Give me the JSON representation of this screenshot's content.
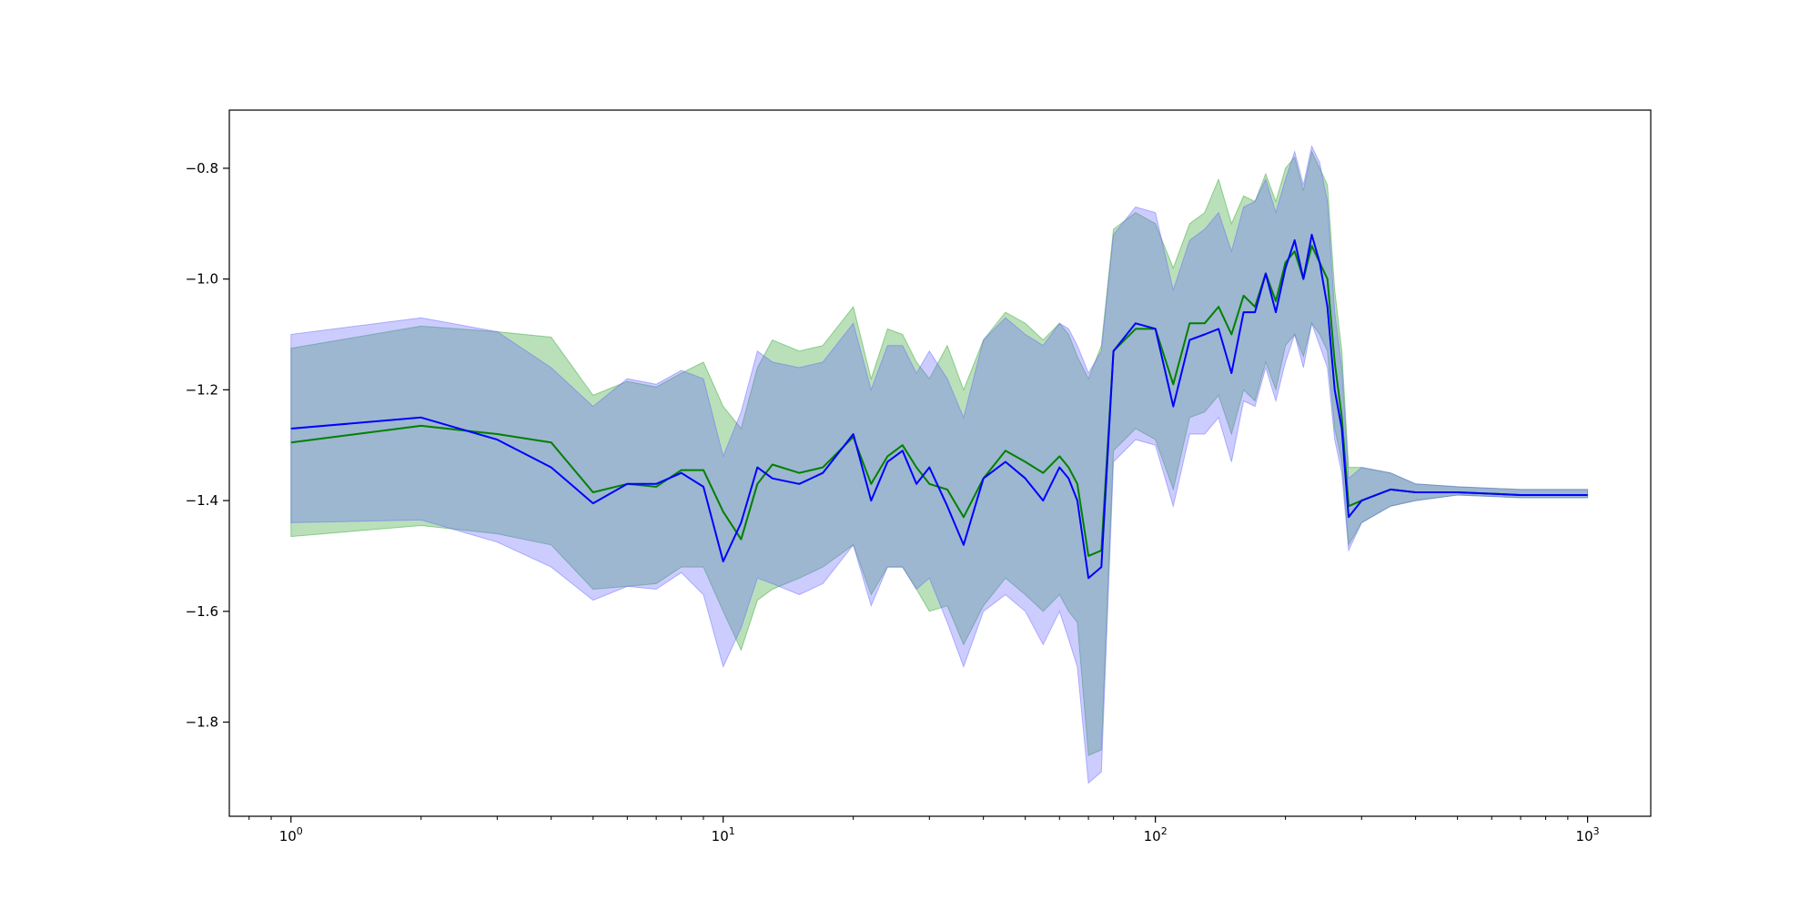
{
  "chart_data": {
    "type": "line",
    "title": "",
    "xlabel": "",
    "ylabel": "",
    "x_scale": "log",
    "xlim": [
      0.72,
      1400
    ],
    "ylim": [
      -1.97,
      -0.695
    ],
    "grid": false,
    "legend": "none",
    "x_ticks": [
      {
        "value": 1,
        "base": "10",
        "exp": "0"
      },
      {
        "value": 10,
        "base": "10",
        "exp": "1"
      },
      {
        "value": 100,
        "base": "10",
        "exp": "2"
      },
      {
        "value": 1000,
        "base": "10",
        "exp": "3"
      }
    ],
    "y_ticks": [
      {
        "value": -0.8,
        "label": "−0.8"
      },
      {
        "value": -1.0,
        "label": "−1.0"
      },
      {
        "value": -1.2,
        "label": "−1.2"
      },
      {
        "value": -1.4,
        "label": "−1.4"
      },
      {
        "value": -1.6,
        "label": "−1.6"
      },
      {
        "value": -1.8,
        "label": "−1.8"
      }
    ],
    "series": [
      {
        "color": "#008000",
        "band_color": "#2ca02c",
        "x": [
          1,
          2,
          3,
          4,
          5,
          6,
          7,
          8,
          9,
          10,
          11,
          12,
          13,
          15,
          17,
          20,
          22,
          24,
          26,
          28,
          30,
          33,
          36,
          40,
          45,
          50,
          55,
          60,
          63,
          66,
          70,
          75,
          80,
          90,
          100,
          110,
          120,
          130,
          140,
          150,
          160,
          170,
          180,
          190,
          200,
          210,
          220,
          230,
          240,
          250,
          260,
          270,
          280,
          300,
          350,
          400,
          500,
          700,
          1000
        ],
        "y": [
          -1.295,
          -1.265,
          -1.28,
          -1.295,
          -1.385,
          -1.37,
          -1.375,
          -1.345,
          -1.345,
          -1.42,
          -1.47,
          -1.37,
          -1.335,
          -1.35,
          -1.34,
          -1.285,
          -1.37,
          -1.32,
          -1.3,
          -1.34,
          -1.37,
          -1.38,
          -1.43,
          -1.36,
          -1.31,
          -1.33,
          -1.35,
          -1.32,
          -1.34,
          -1.37,
          -1.5,
          -1.49,
          -1.13,
          -1.09,
          -1.09,
          -1.19,
          -1.08,
          -1.08,
          -1.05,
          -1.1,
          -1.03,
          -1.05,
          -0.99,
          -1.04,
          -0.97,
          -0.95,
          -1.0,
          -0.94,
          -0.97,
          -1.0,
          -1.15,
          -1.25,
          -1.41,
          -1.4,
          -1.38,
          -1.385,
          -1.385,
          -1.39,
          -1.39
        ],
        "lower": [
          -1.465,
          -1.445,
          -1.46,
          -1.48,
          -1.56,
          -1.555,
          -1.55,
          -1.52,
          -1.52,
          -1.6,
          -1.67,
          -1.58,
          -1.56,
          -1.54,
          -1.52,
          -1.48,
          -1.57,
          -1.52,
          -1.52,
          -1.56,
          -1.6,
          -1.59,
          -1.66,
          -1.59,
          -1.54,
          -1.57,
          -1.6,
          -1.57,
          -1.6,
          -1.62,
          -1.86,
          -1.85,
          -1.31,
          -1.27,
          -1.29,
          -1.38,
          -1.25,
          -1.24,
          -1.21,
          -1.28,
          -1.2,
          -1.22,
          -1.15,
          -1.2,
          -1.12,
          -1.1,
          -1.14,
          -1.08,
          -1.1,
          -1.13,
          -1.27,
          -1.33,
          -1.48,
          -1.44,
          -1.41,
          -1.4,
          -1.39,
          -1.395,
          -1.395
        ],
        "upper": [
          -1.125,
          -1.085,
          -1.095,
          -1.105,
          -1.21,
          -1.185,
          -1.195,
          -1.17,
          -1.15,
          -1.23,
          -1.27,
          -1.16,
          -1.11,
          -1.13,
          -1.12,
          -1.05,
          -1.18,
          -1.09,
          -1.1,
          -1.15,
          -1.18,
          -1.12,
          -1.2,
          -1.11,
          -1.06,
          -1.08,
          -1.11,
          -1.08,
          -1.1,
          -1.14,
          -1.18,
          -1.12,
          -0.91,
          -0.88,
          -0.9,
          -0.98,
          -0.9,
          -0.88,
          -0.82,
          -0.9,
          -0.85,
          -0.86,
          -0.81,
          -0.86,
          -0.8,
          -0.78,
          -0.84,
          -0.77,
          -0.8,
          -0.83,
          -1.02,
          -1.13,
          -1.34,
          -1.34,
          -1.35,
          -1.37,
          -1.375,
          -1.38,
          -1.38
        ]
      },
      {
        "color": "#0000ff",
        "band_color": "#6464ff",
        "x": [
          1,
          2,
          3,
          4,
          5,
          6,
          7,
          8,
          9,
          10,
          11,
          12,
          13,
          15,
          17,
          20,
          22,
          24,
          26,
          28,
          30,
          33,
          36,
          40,
          45,
          50,
          55,
          60,
          63,
          66,
          70,
          75,
          80,
          90,
          100,
          110,
          120,
          130,
          140,
          150,
          160,
          170,
          180,
          190,
          200,
          210,
          220,
          230,
          240,
          250,
          260,
          270,
          280,
          300,
          350,
          400,
          500,
          700,
          1000
        ],
        "y": [
          -1.27,
          -1.25,
          -1.29,
          -1.34,
          -1.405,
          -1.37,
          -1.37,
          -1.35,
          -1.375,
          -1.51,
          -1.44,
          -1.34,
          -1.36,
          -1.37,
          -1.35,
          -1.28,
          -1.4,
          -1.33,
          -1.31,
          -1.37,
          -1.34,
          -1.41,
          -1.48,
          -1.36,
          -1.33,
          -1.36,
          -1.4,
          -1.34,
          -1.36,
          -1.4,
          -1.54,
          -1.52,
          -1.13,
          -1.08,
          -1.09,
          -1.23,
          -1.11,
          -1.1,
          -1.09,
          -1.17,
          -1.06,
          -1.06,
          -0.99,
          -1.06,
          -0.98,
          -0.93,
          -1.0,
          -0.92,
          -0.97,
          -1.05,
          -1.2,
          -1.27,
          -1.43,
          -1.4,
          -1.38,
          -1.385,
          -1.385,
          -1.39,
          -1.39
        ],
        "lower": [
          -1.44,
          -1.435,
          -1.475,
          -1.52,
          -1.58,
          -1.555,
          -1.56,
          -1.53,
          -1.57,
          -1.7,
          -1.63,
          -1.54,
          -1.55,
          -1.57,
          -1.55,
          -1.48,
          -1.59,
          -1.52,
          -1.52,
          -1.56,
          -1.54,
          -1.62,
          -1.7,
          -1.6,
          -1.57,
          -1.6,
          -1.66,
          -1.6,
          -1.65,
          -1.7,
          -1.91,
          -1.89,
          -1.33,
          -1.29,
          -1.3,
          -1.41,
          -1.28,
          -1.28,
          -1.25,
          -1.33,
          -1.22,
          -1.23,
          -1.16,
          -1.22,
          -1.15,
          -1.1,
          -1.16,
          -1.08,
          -1.12,
          -1.16,
          -1.29,
          -1.35,
          -1.49,
          -1.44,
          -1.41,
          -1.4,
          -1.39,
          -1.395,
          -1.395
        ],
        "upper": [
          -1.1,
          -1.07,
          -1.095,
          -1.16,
          -1.23,
          -1.18,
          -1.19,
          -1.165,
          -1.18,
          -1.32,
          -1.24,
          -1.13,
          -1.15,
          -1.16,
          -1.15,
          -1.08,
          -1.2,
          -1.12,
          -1.12,
          -1.17,
          -1.13,
          -1.18,
          -1.25,
          -1.11,
          -1.07,
          -1.1,
          -1.12,
          -1.08,
          -1.09,
          -1.12,
          -1.17,
          -1.13,
          -0.92,
          -0.87,
          -0.88,
          -1.02,
          -0.93,
          -0.91,
          -0.88,
          -0.95,
          -0.87,
          -0.86,
          -0.82,
          -0.88,
          -0.82,
          -0.77,
          -0.83,
          -0.76,
          -0.79,
          -0.86,
          -1.06,
          -1.16,
          -1.36,
          -1.34,
          -1.35,
          -1.37,
          -1.375,
          -1.38,
          -1.38
        ]
      }
    ]
  }
}
